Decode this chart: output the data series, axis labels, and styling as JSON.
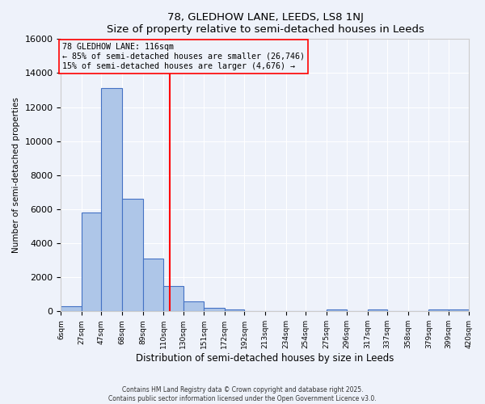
{
  "title": "78, GLEDHOW LANE, LEEDS, LS8 1NJ",
  "subtitle": "Size of property relative to semi-detached houses in Leeds",
  "xlabel": "Distribution of semi-detached houses by size in Leeds",
  "ylabel": "Number of semi-detached properties",
  "bin_labels": [
    "6sqm",
    "27sqm",
    "47sqm",
    "68sqm",
    "89sqm",
    "110sqm",
    "130sqm",
    "151sqm",
    "172sqm",
    "192sqm",
    "213sqm",
    "234sqm",
    "254sqm",
    "275sqm",
    "296sqm",
    "317sqm",
    "337sqm",
    "358sqm",
    "379sqm",
    "399sqm",
    "420sqm"
  ],
  "bin_edges": [
    6,
    27,
    47,
    68,
    89,
    110,
    130,
    151,
    172,
    192,
    213,
    234,
    254,
    275,
    296,
    317,
    337,
    358,
    379,
    399,
    420
  ],
  "bar_heights": [
    300,
    5800,
    13100,
    6600,
    3100,
    1500,
    600,
    200,
    100,
    0,
    0,
    0,
    0,
    100,
    0,
    100,
    0,
    0,
    100,
    100
  ],
  "bar_color": "#aec6e8",
  "bar_edge_color": "#4472c4",
  "vline_x": 116,
  "vline_color": "red",
  "annotation_title": "78 GLEDHOW LANE: 116sqm",
  "annotation_line1": "← 85% of semi-detached houses are smaller (26,746)",
  "annotation_line2": "15% of semi-detached houses are larger (4,676) →",
  "annotation_box_color": "red",
  "ylim": [
    0,
    16000
  ],
  "yticks": [
    0,
    2000,
    4000,
    6000,
    8000,
    10000,
    12000,
    14000,
    16000
  ],
  "background_color": "#eef2fa",
  "footer_line1": "Contains HM Land Registry data © Crown copyright and database right 2025.",
  "footer_line2": "Contains public sector information licensed under the Open Government Licence v3.0."
}
